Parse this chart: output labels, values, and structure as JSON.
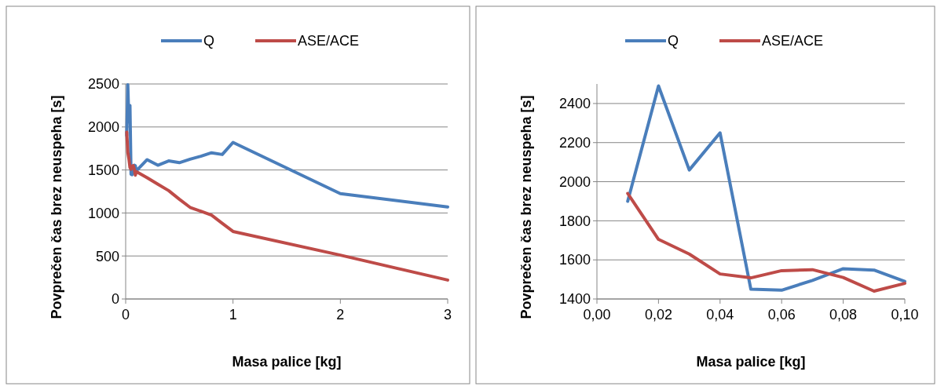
{
  "chart_data": [
    {
      "type": "line",
      "xlabel": "Masa palice [kg]",
      "ylabel": "Povprečen čas brez neuspeha [s]",
      "xlim": [
        0,
        3
      ],
      "xticks": [
        0,
        1,
        2,
        3
      ],
      "ylim": [
        0,
        2500
      ],
      "yticks": [
        0,
        500,
        1000,
        1500,
        2000,
        2500
      ],
      "grid": "y",
      "legend": "top",
      "marker": "none",
      "series": [
        {
          "name": "Q",
          "color": "#4a7ebb",
          "x": [
            0.01,
            0.02,
            0.03,
            0.04,
            0.05,
            0.06,
            0.07,
            0.08,
            0.09,
            0.1,
            0.2,
            0.3,
            0.4,
            0.5,
            0.6,
            0.7,
            0.8,
            0.9,
            1,
            2,
            3
          ],
          "values": [
            1900,
            2490,
            2060,
            2250,
            1450,
            1445,
            1495,
            1555,
            1548,
            1490,
            1620,
            1555,
            1605,
            1585,
            1625,
            1660,
            1700,
            1680,
            1820,
            1225,
            1070
          ]
        },
        {
          "name": "ASE/ACE",
          "color": "#be4b48",
          "x": [
            0.01,
            0.02,
            0.03,
            0.04,
            0.05,
            0.06,
            0.07,
            0.08,
            0.09,
            0.1,
            0.2,
            0.3,
            0.4,
            0.5,
            0.6,
            0.7,
            0.8,
            0.9,
            1,
            2,
            3
          ],
          "values": [
            1940,
            1705,
            1630,
            1528,
            1508,
            1545,
            1550,
            1510,
            1440,
            1480,
            1410,
            1335,
            1260,
            1160,
            1065,
            1020,
            975,
            880,
            785,
            510,
            220
          ]
        }
      ]
    },
    {
      "type": "line",
      "xlabel": "Masa palice [kg]",
      "ylabel": "Povprečen čas brez neuspeha [s]",
      "xlim": [
        0,
        0.1
      ],
      "xticks": [
        {
          "value": 0,
          "label": "0,00"
        },
        {
          "value": 0.02,
          "label": "0,02"
        },
        {
          "value": 0.04,
          "label": "0,04"
        },
        {
          "value": 0.06,
          "label": "0,06"
        },
        {
          "value": 0.08,
          "label": "0,08"
        },
        {
          "value": 0.1,
          "label": "0,10"
        }
      ],
      "ylim": [
        1400,
        2500
      ],
      "yticks": [
        1400,
        1600,
        1800,
        2000,
        2200,
        2400
      ],
      "grid": "y",
      "legend": "top",
      "marker": "none",
      "series": [
        {
          "name": "Q",
          "color": "#4a7ebb",
          "x": [
            0.01,
            0.02,
            0.03,
            0.04,
            0.05,
            0.06,
            0.07,
            0.08,
            0.09,
            0.1
          ],
          "values": [
            1900,
            2490,
            2060,
            2250,
            1450,
            1445,
            1495,
            1555,
            1548,
            1490
          ]
        },
        {
          "name": "ASE/ACE",
          "color": "#be4b48",
          "x": [
            0.01,
            0.02,
            0.03,
            0.04,
            0.05,
            0.06,
            0.07,
            0.08,
            0.09,
            0.1
          ],
          "values": [
            1940,
            1705,
            1630,
            1528,
            1508,
            1545,
            1550,
            1510,
            1440,
            1480
          ]
        }
      ]
    }
  ]
}
